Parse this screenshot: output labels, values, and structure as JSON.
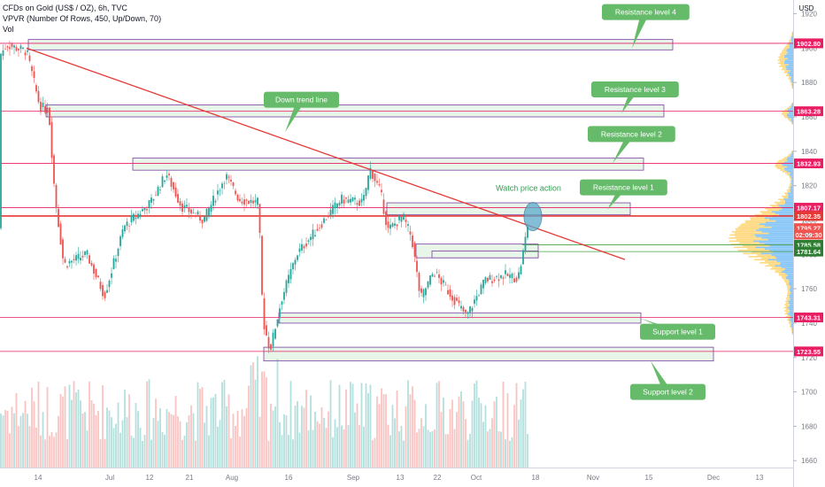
{
  "legend": {
    "symbol": "CFDs on Gold (US$ / OZ), 6h, TVC",
    "vpvr": "VPVR (Number Of Rows, 450, Up/Down, 70)",
    "volume": "Vol"
  },
  "currency": "USD",
  "colors": {
    "up": "#26a69a",
    "down": "#ef5350",
    "level_line": "#e91e63",
    "zone_fill": "#e8f5e9",
    "zone_border": "#7b3fa0",
    "callout": "#66bb6a",
    "trendline": "#e53935",
    "vp_up": "#2196f3",
    "vp_down": "#ffb300",
    "watch_text": "#2e9c4e"
  },
  "chart_data": {
    "type": "candlestick",
    "y_axis": {
      "range": [
        1656,
        1928
      ],
      "ticks": [
        1660,
        1680,
        1700,
        1720,
        1740,
        1760,
        1780,
        1800,
        1820,
        1840,
        1860,
        1880,
        1900,
        1920
      ]
    },
    "x_axis": {
      "ticks": [
        "14",
        "Jul",
        "12",
        "21",
        "Aug",
        "16",
        "Sep",
        "13",
        "22",
        "Oct",
        "18",
        "Nov",
        "15",
        "Dec",
        "13"
      ]
    },
    "price_path": [
      [
        0,
        1896
      ],
      [
        8,
        1902
      ],
      [
        30,
        1898
      ],
      [
        45,
        1866
      ],
      [
        55,
        1864
      ],
      [
        62,
        1814
      ],
      [
        72,
        1774
      ],
      [
        98,
        1780
      ],
      [
        118,
        1756
      ],
      [
        140,
        1796
      ],
      [
        170,
        1810
      ],
      [
        188,
        1827
      ],
      [
        205,
        1808
      ],
      [
        230,
        1800
      ],
      [
        255,
        1826
      ],
      [
        270,
        1812
      ],
      [
        292,
        1810
      ],
      [
        297,
        1742
      ],
      [
        305,
        1724
      ],
      [
        318,
        1754
      ],
      [
        335,
        1780
      ],
      [
        360,
        1796
      ],
      [
        385,
        1812
      ],
      [
        410,
        1810
      ],
      [
        418,
        1830
      ],
      [
        430,
        1816
      ],
      [
        438,
        1794
      ],
      [
        455,
        1802
      ],
      [
        465,
        1790
      ],
      [
        475,
        1754
      ],
      [
        490,
        1770
      ],
      [
        510,
        1756
      ],
      [
        527,
        1744
      ],
      [
        535,
        1752
      ],
      [
        548,
        1765
      ],
      [
        570,
        1768
      ],
      [
        585,
        1766
      ],
      [
        590,
        1778
      ],
      [
        596,
        1797
      ],
      [
        600,
        1795
      ]
    ],
    "price_labels": [
      {
        "value": 1902.8,
        "text": "1902.80",
        "color": "#e91e63"
      },
      {
        "value": 1863.28,
        "text": "1863.28",
        "color": "#e91e63"
      },
      {
        "value": 1832.93,
        "text": "1832.93",
        "color": "#e91e63"
      },
      {
        "value": 1807.17,
        "text": "1807.17",
        "color": "#e91e63"
      },
      {
        "value": 1802.35,
        "text": "1802.35",
        "color": "#e53935"
      },
      {
        "value": 1795.27,
        "text": "1795.27",
        "color": "#ef5350"
      },
      {
        "value": 1791.5,
        "text": "02:09:30",
        "color": "#ef5350"
      },
      {
        "value": 1785.58,
        "text": "1785.58",
        "color": "#2e7d32"
      },
      {
        "value": 1781.64,
        "text": "1781.64",
        "color": "#2e7d32"
      },
      {
        "value": 1743.31,
        "text": "1743.31",
        "color": "#e91e63"
      },
      {
        "value": 1723.55,
        "text": "1723.55",
        "color": "#e91e63"
      }
    ],
    "level_lines": [
      1902.8,
      1863.28,
      1832.93,
      1807.17,
      1743.31,
      1723.55
    ],
    "zones": [
      {
        "x0": 32,
        "x1": 760,
        "y_high": 1905,
        "y_low": 1899
      },
      {
        "x0": 52,
        "x1": 750,
        "y_high": 1867,
        "y_low": 1860
      },
      {
        "x0": 150,
        "x1": 727,
        "y_high": 1836,
        "y_low": 1829
      },
      {
        "x0": 437,
        "x1": 712,
        "y_high": 1810,
        "y_low": 1803
      },
      {
        "x0": 470,
        "x1": 608,
        "y_high": 1786,
        "y_low": 1778
      },
      {
        "x0": 488,
        "x1": 608,
        "y_high": 1782,
        "y_low": 1778
      },
      {
        "x0": 315,
        "x1": 724,
        "y_high": 1746,
        "y_low": 1740
      },
      {
        "x0": 298,
        "x1": 806,
        "y_high": 1726,
        "y_low": 1718
      }
    ],
    "trendline": {
      "x0": 30,
      "y0": 1900,
      "x1": 706,
      "y1": 1777
    },
    "red_line": 1802.35,
    "green_lines": [
      1785.58,
      1781.64
    ],
    "callouts": [
      {
        "text": "Resistance level 4",
        "x": 680,
        "value": 1921,
        "tip_x": 714,
        "tip_value": 1900
      },
      {
        "text": "Resistance level 3",
        "x": 668,
        "value": 1876,
        "tip_x": 702,
        "tip_value": 1862
      },
      {
        "text": "Resistance level 2",
        "x": 664,
        "value": 1850,
        "tip_x": 692,
        "tip_value": 1833
      },
      {
        "text": "Resistance level 1",
        "x": 655,
        "value": 1819,
        "tip_x": 686,
        "tip_value": 1806
      },
      {
        "text": "Down trend line",
        "x": 298,
        "value": 1870,
        "tip_x": 322,
        "tip_value": 1851
      },
      {
        "text": "Support level 1",
        "x": 723,
        "value": 1735,
        "tip_x": 722,
        "tip_value": 1743
      },
      {
        "text": "Support level 2",
        "x": 712,
        "value": 1700,
        "tip_x": 735,
        "tip_value": 1718
      }
    ],
    "annotation": {
      "text": "Watch price action",
      "x": 597,
      "value": 1817
    },
    "circle": {
      "x": 602,
      "value": 1802
    }
  }
}
